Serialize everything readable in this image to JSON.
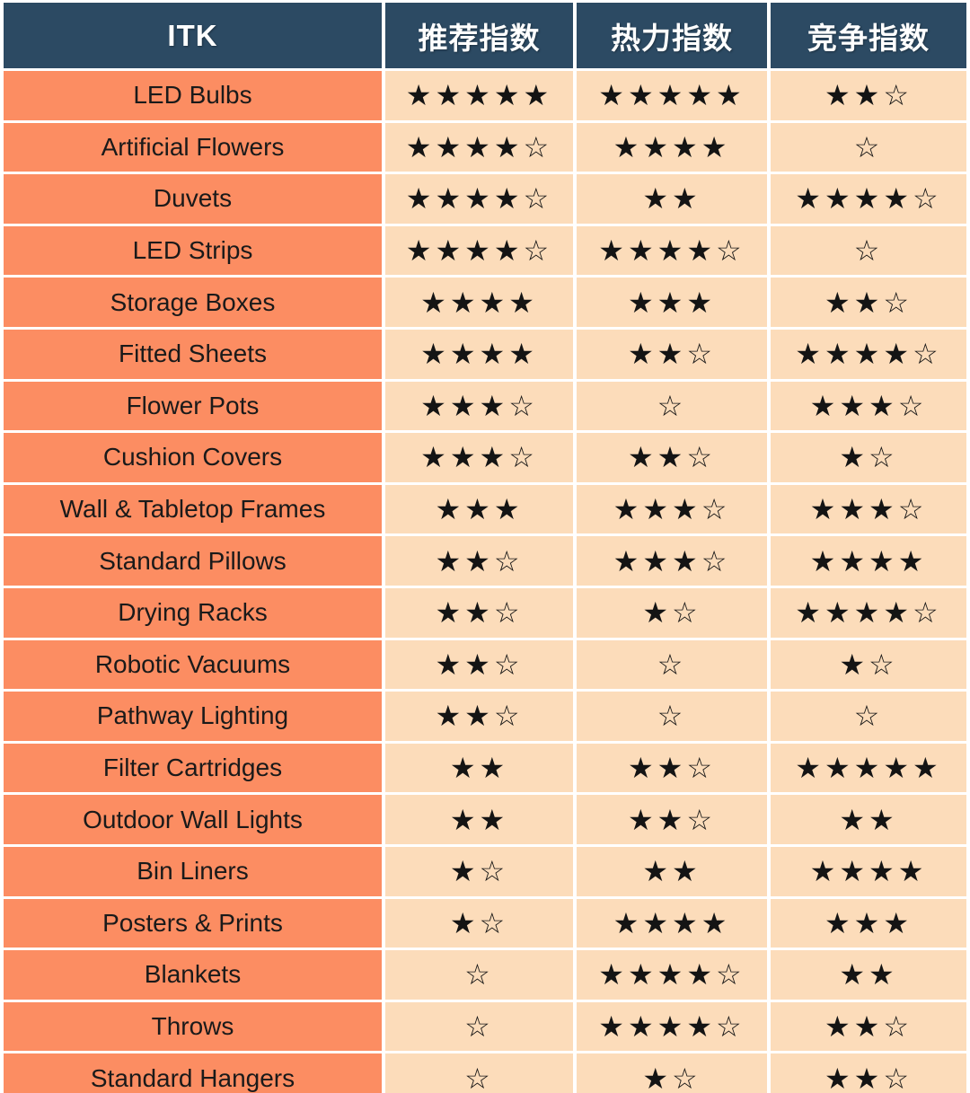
{
  "colors": {
    "header_bg": "#2C4A63",
    "header_text": "#FFFFFF",
    "item_cell_bg": "#FC8D62",
    "rating_cell_bg": "#FCDCBA",
    "star_color": "#141414",
    "item_text": "#1A1A1A",
    "gap": "#FFFFFF",
    "footer_bar": "#4A7150"
  },
  "chart_data": {
    "type": "table",
    "title": "ITK category star-rating table",
    "columns": [
      "ITK",
      "推荐指数",
      "热力指数",
      "竞争指数"
    ],
    "star_symbols": {
      "filled": "★",
      "hollow": "☆"
    },
    "rating_keys": [
      "recommend",
      "heat",
      "competition"
    ],
    "rows": [
      {
        "item": "LED Bulbs",
        "recommend": {
          "filled": 5,
          "hollow": 0
        },
        "heat": {
          "filled": 5,
          "hollow": 0
        },
        "competition": {
          "filled": 2,
          "hollow": 1
        }
      },
      {
        "item": "Artificial Flowers",
        "recommend": {
          "filled": 4,
          "hollow": 1
        },
        "heat": {
          "filled": 4,
          "hollow": 0
        },
        "competition": {
          "filled": 0,
          "hollow": 1
        }
      },
      {
        "item": "Duvets",
        "recommend": {
          "filled": 4,
          "hollow": 1
        },
        "heat": {
          "filled": 2,
          "hollow": 0
        },
        "competition": {
          "filled": 4,
          "hollow": 1
        }
      },
      {
        "item": "LED Strips",
        "recommend": {
          "filled": 4,
          "hollow": 1
        },
        "heat": {
          "filled": 4,
          "hollow": 1
        },
        "competition": {
          "filled": 0,
          "hollow": 1
        }
      },
      {
        "item": "Storage Boxes",
        "recommend": {
          "filled": 4,
          "hollow": 0
        },
        "heat": {
          "filled": 3,
          "hollow": 0
        },
        "competition": {
          "filled": 2,
          "hollow": 1
        }
      },
      {
        "item": "Fitted Sheets",
        "recommend": {
          "filled": 4,
          "hollow": 0
        },
        "heat": {
          "filled": 2,
          "hollow": 1
        },
        "competition": {
          "filled": 4,
          "hollow": 1
        }
      },
      {
        "item": "Flower Pots",
        "recommend": {
          "filled": 3,
          "hollow": 1
        },
        "heat": {
          "filled": 0,
          "hollow": 1
        },
        "competition": {
          "filled": 3,
          "hollow": 1
        }
      },
      {
        "item": "Cushion Covers",
        "recommend": {
          "filled": 3,
          "hollow": 1
        },
        "heat": {
          "filled": 2,
          "hollow": 1
        },
        "competition": {
          "filled": 1,
          "hollow": 1
        }
      },
      {
        "item": "Wall & Tabletop Frames",
        "recommend": {
          "filled": 3,
          "hollow": 0
        },
        "heat": {
          "filled": 3,
          "hollow": 1
        },
        "competition": {
          "filled": 3,
          "hollow": 1
        }
      },
      {
        "item": "Standard Pillows",
        "recommend": {
          "filled": 2,
          "hollow": 1
        },
        "heat": {
          "filled": 3,
          "hollow": 1
        },
        "competition": {
          "filled": 4,
          "hollow": 0
        }
      },
      {
        "item": "Drying Racks",
        "recommend": {
          "filled": 2,
          "hollow": 1
        },
        "heat": {
          "filled": 1,
          "hollow": 1
        },
        "competition": {
          "filled": 4,
          "hollow": 1
        }
      },
      {
        "item": "Robotic Vacuums",
        "recommend": {
          "filled": 2,
          "hollow": 1
        },
        "heat": {
          "filled": 0,
          "hollow": 1
        },
        "competition": {
          "filled": 1,
          "hollow": 1
        }
      },
      {
        "item": "Pathway Lighting",
        "recommend": {
          "filled": 2,
          "hollow": 1
        },
        "heat": {
          "filled": 0,
          "hollow": 1
        },
        "competition": {
          "filled": 0,
          "hollow": 1
        }
      },
      {
        "item": "Filter Cartridges",
        "recommend": {
          "filled": 2,
          "hollow": 0
        },
        "heat": {
          "filled": 2,
          "hollow": 1
        },
        "competition": {
          "filled": 5,
          "hollow": 0
        }
      },
      {
        "item": "Outdoor Wall Lights",
        "recommend": {
          "filled": 2,
          "hollow": 0
        },
        "heat": {
          "filled": 2,
          "hollow": 1
        },
        "competition": {
          "filled": 2,
          "hollow": 0
        }
      },
      {
        "item": "Bin Liners",
        "recommend": {
          "filled": 1,
          "hollow": 1
        },
        "heat": {
          "filled": 2,
          "hollow": 0
        },
        "competition": {
          "filled": 4,
          "hollow": 0
        }
      },
      {
        "item": "Posters & Prints",
        "recommend": {
          "filled": 1,
          "hollow": 1
        },
        "heat": {
          "filled": 4,
          "hollow": 0
        },
        "competition": {
          "filled": 3,
          "hollow": 0
        }
      },
      {
        "item": "Blankets",
        "recommend": {
          "filled": 0,
          "hollow": 1
        },
        "heat": {
          "filled": 4,
          "hollow": 1
        },
        "competition": {
          "filled": 2,
          "hollow": 0
        }
      },
      {
        "item": "Throws",
        "recommend": {
          "filled": 0,
          "hollow": 1
        },
        "heat": {
          "filled": 4,
          "hollow": 1
        },
        "competition": {
          "filled": 2,
          "hollow": 1
        }
      },
      {
        "item": "Standard Hangers",
        "recommend": {
          "filled": 0,
          "hollow": 1
        },
        "heat": {
          "filled": 1,
          "hollow": 1
        },
        "competition": {
          "filled": 2,
          "hollow": 1
        }
      }
    ]
  }
}
